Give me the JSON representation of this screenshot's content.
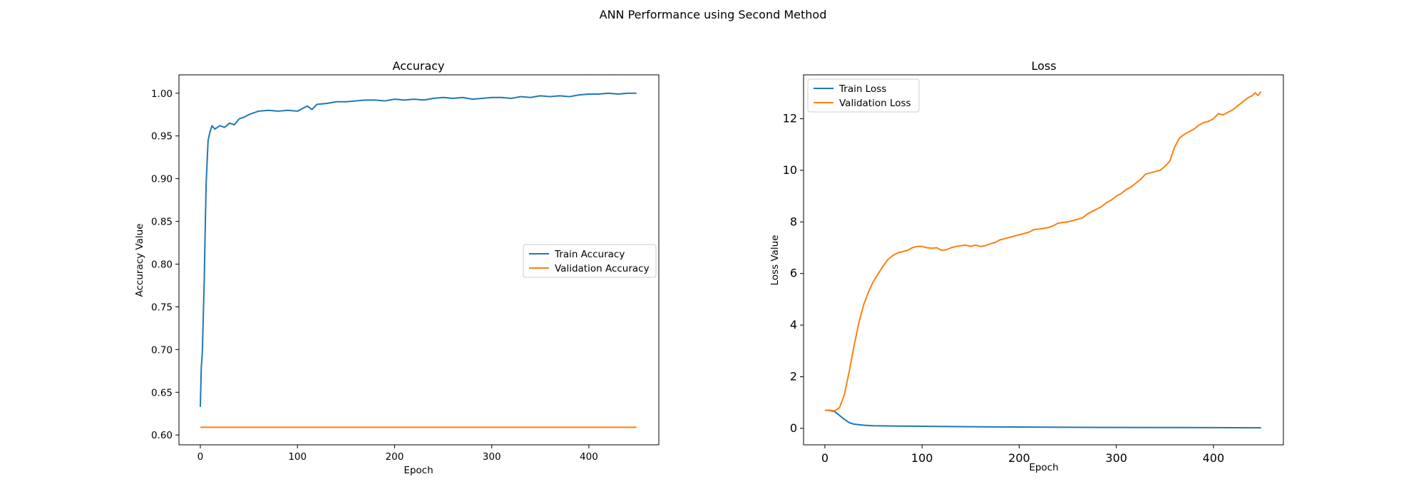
{
  "figure": {
    "suptitle": "ANN Performance using Second Method"
  },
  "colors": {
    "train": "#1f77b4",
    "validation": "#ff7f0e"
  },
  "chart_data": [
    {
      "type": "line",
      "title": "Accuracy",
      "xlabel": "Epoch",
      "ylabel": "Accuracy Value",
      "xlim": [
        -22,
        472
      ],
      "ylim": [
        0.5885,
        1.0215
      ],
      "xticks": [
        0,
        100,
        200,
        300,
        400
      ],
      "yticks": [
        0.6,
        0.65,
        0.7,
        0.75,
        0.8,
        0.85,
        0.9,
        0.95,
        1.0
      ],
      "ytick_labels": [
        "0.60",
        "0.65",
        "0.70",
        "0.75",
        "0.80",
        "0.85",
        "0.90",
        "0.95",
        "1.00"
      ],
      "grid": false,
      "legend_position": "center-right",
      "series": [
        {
          "name": "Train Accuracy",
          "color_key": "train",
          "points": [
            [
              0,
              0.633
            ],
            [
              1,
              0.68
            ],
            [
              2,
              0.695
            ],
            [
              4,
              0.78
            ],
            [
              5,
              0.84
            ],
            [
              6,
              0.895
            ],
            [
              7,
              0.92
            ],
            [
              8,
              0.945
            ],
            [
              10,
              0.955
            ],
            [
              12,
              0.962
            ],
            [
              15,
              0.958
            ],
            [
              20,
              0.962
            ],
            [
              25,
              0.96
            ],
            [
              30,
              0.965
            ],
            [
              35,
              0.963
            ],
            [
              40,
              0.97
            ],
            [
              45,
              0.972
            ],
            [
              50,
              0.975
            ],
            [
              55,
              0.977
            ],
            [
              60,
              0.979
            ],
            [
              70,
              0.98
            ],
            [
              80,
              0.979
            ],
            [
              90,
              0.98
            ],
            [
              100,
              0.979
            ],
            [
              105,
              0.982
            ],
            [
              110,
              0.985
            ],
            [
              115,
              0.981
            ],
            [
              120,
              0.987
            ],
            [
              130,
              0.988
            ],
            [
              140,
              0.99
            ],
            [
              150,
              0.99
            ],
            [
              160,
              0.991
            ],
            [
              170,
              0.992
            ],
            [
              180,
              0.992
            ],
            [
              190,
              0.991
            ],
            [
              200,
              0.993
            ],
            [
              210,
              0.992
            ],
            [
              220,
              0.993
            ],
            [
              230,
              0.992
            ],
            [
              240,
              0.994
            ],
            [
              250,
              0.995
            ],
            [
              260,
              0.994
            ],
            [
              270,
              0.995
            ],
            [
              280,
              0.993
            ],
            [
              290,
              0.994
            ],
            [
              300,
              0.995
            ],
            [
              310,
              0.995
            ],
            [
              320,
              0.994
            ],
            [
              330,
              0.996
            ],
            [
              340,
              0.995
            ],
            [
              350,
              0.997
            ],
            [
              360,
              0.996
            ],
            [
              370,
              0.997
            ],
            [
              380,
              0.996
            ],
            [
              390,
              0.998
            ],
            [
              400,
              0.999
            ],
            [
              410,
              0.999
            ],
            [
              420,
              1.0
            ],
            [
              430,
              0.999
            ],
            [
              440,
              1.0
            ],
            [
              449,
              1.0
            ]
          ]
        },
        {
          "name": "Validation Accuracy",
          "color_key": "validation",
          "points": [
            [
              0,
              0.609
            ],
            [
              449,
              0.609
            ]
          ]
        }
      ]
    },
    {
      "type": "line",
      "title": "Loss",
      "xlabel": "Epoch",
      "ylabel": "Loss Value",
      "xlim": [
        -22,
        472
      ],
      "ylim": [
        -0.64,
        13.7
      ],
      "xticks": [
        0,
        100,
        200,
        300,
        400
      ],
      "yticks": [
        0,
        2,
        4,
        6,
        8,
        10,
        12
      ],
      "ytick_labels": [
        "0",
        "2",
        "4",
        "6",
        "8",
        "10",
        "12"
      ],
      "grid": false,
      "legend_position": "top-left",
      "series": [
        {
          "name": "Train Loss",
          "color_key": "train",
          "points": [
            [
              0,
              0.7
            ],
            [
              5,
              0.69
            ],
            [
              10,
              0.65
            ],
            [
              15,
              0.5
            ],
            [
              20,
              0.35
            ],
            [
              25,
              0.22
            ],
            [
              30,
              0.16
            ],
            [
              40,
              0.12
            ],
            [
              50,
              0.1
            ],
            [
              70,
              0.09
            ],
            [
              100,
              0.08
            ],
            [
              150,
              0.06
            ],
            [
              200,
              0.05
            ],
            [
              250,
              0.04
            ],
            [
              300,
              0.035
            ],
            [
              350,
              0.03
            ],
            [
              400,
              0.025
            ],
            [
              449,
              0.02
            ]
          ]
        },
        {
          "name": "Validation Loss",
          "color_key": "validation",
          "points": [
            [
              0,
              0.7
            ],
            [
              5,
              0.7
            ],
            [
              10,
              0.68
            ],
            [
              15,
              0.8
            ],
            [
              20,
              1.3
            ],
            [
              25,
              2.2
            ],
            [
              30,
              3.2
            ],
            [
              35,
              4.1
            ],
            [
              40,
              4.8
            ],
            [
              45,
              5.3
            ],
            [
              50,
              5.7
            ],
            [
              55,
              6.0
            ],
            [
              60,
              6.3
            ],
            [
              65,
              6.55
            ],
            [
              70,
              6.7
            ],
            [
              75,
              6.8
            ],
            [
              80,
              6.85
            ],
            [
              85,
              6.9
            ],
            [
              90,
              7.0
            ],
            [
              95,
              7.05
            ],
            [
              100,
              7.05
            ],
            [
              105,
              7.0
            ],
            [
              110,
              6.98
            ],
            [
              115,
              7.0
            ],
            [
              120,
              6.9
            ],
            [
              125,
              6.92
            ],
            [
              130,
              7.0
            ],
            [
              135,
              7.05
            ],
            [
              140,
              7.08
            ],
            [
              145,
              7.1
            ],
            [
              150,
              7.05
            ],
            [
              155,
              7.1
            ],
            [
              160,
              7.05
            ],
            [
              165,
              7.08
            ],
            [
              170,
              7.15
            ],
            [
              175,
              7.2
            ],
            [
              180,
              7.3
            ],
            [
              185,
              7.35
            ],
            [
              190,
              7.4
            ],
            [
              195,
              7.45
            ],
            [
              200,
              7.5
            ],
            [
              210,
              7.6
            ],
            [
              215,
              7.7
            ],
            [
              220,
              7.72
            ],
            [
              225,
              7.75
            ],
            [
              230,
              7.78
            ],
            [
              235,
              7.85
            ],
            [
              240,
              7.95
            ],
            [
              245,
              7.98
            ],
            [
              250,
              8.0
            ],
            [
              255,
              8.05
            ],
            [
              260,
              8.1
            ],
            [
              265,
              8.15
            ],
            [
              270,
              8.3
            ],
            [
              275,
              8.4
            ],
            [
              280,
              8.5
            ],
            [
              285,
              8.6
            ],
            [
              290,
              8.75
            ],
            [
              295,
              8.85
            ],
            [
              300,
              9.0
            ],
            [
              305,
              9.1
            ],
            [
              310,
              9.25
            ],
            [
              315,
              9.35
            ],
            [
              320,
              9.5
            ],
            [
              325,
              9.65
            ],
            [
              330,
              9.85
            ],
            [
              335,
              9.9
            ],
            [
              340,
              9.95
            ],
            [
              345,
              10.0
            ],
            [
              350,
              10.15
            ],
            [
              355,
              10.35
            ],
            [
              360,
              10.9
            ],
            [
              365,
              11.25
            ],
            [
              370,
              11.4
            ],
            [
              375,
              11.5
            ],
            [
              380,
              11.6
            ],
            [
              385,
              11.75
            ],
            [
              390,
              11.85
            ],
            [
              395,
              11.9
            ],
            [
              400,
              12.0
            ],
            [
              405,
              12.2
            ],
            [
              410,
              12.15
            ],
            [
              415,
              12.25
            ],
            [
              420,
              12.35
            ],
            [
              425,
              12.5
            ],
            [
              430,
              12.65
            ],
            [
              435,
              12.8
            ],
            [
              440,
              12.9
            ],
            [
              443,
              13.0
            ],
            [
              446,
              12.9
            ],
            [
              449,
              13.05
            ]
          ]
        }
      ]
    }
  ]
}
